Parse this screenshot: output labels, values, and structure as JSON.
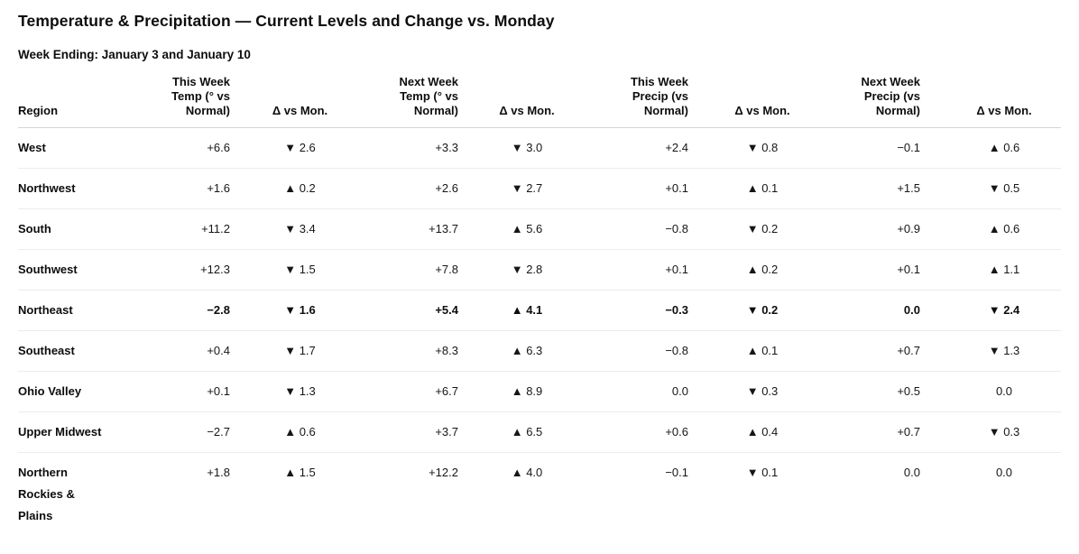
{
  "page": {
    "title": "Temperature & Precipitation — Current Levels and Change vs. Monday",
    "subtitle": "Week Ending: January 3 and January 10"
  },
  "legend": {
    "up_arrow": "▲",
    "down_arrow": "▼",
    "text_color": "#111111",
    "header_rule_color": "#d4d4d4",
    "row_rule_color": "#ececec"
  },
  "table": {
    "columns": [
      {
        "label": "Region",
        "align": "left"
      },
      {
        "label": "This Week\nTemp (° vs\nNormal)",
        "align": "right"
      },
      {
        "label": "Δ vs Mon.",
        "align": "center"
      },
      {
        "label": "Next Week\nTemp (° vs\nNormal)",
        "align": "right"
      },
      {
        "label": "Δ vs Mon.",
        "align": "center"
      },
      {
        "label": "This Week\nPrecip (vs\nNormal)",
        "align": "right"
      },
      {
        "label": "Δ vs Mon.",
        "align": "center"
      },
      {
        "label": "Next Week\nPrecip (vs\nNormal)",
        "align": "right"
      },
      {
        "label": "Δ vs Mon.",
        "align": "center"
      }
    ],
    "rows": [
      {
        "region": "West",
        "emphasis": false,
        "values": [
          "+6.6",
          "▼ 2.6",
          "+3.3",
          "▼ 3.0",
          "+2.4",
          "▼ 0.8",
          "−0.1",
          "▲ 0.6"
        ]
      },
      {
        "region": "Northwest",
        "emphasis": false,
        "values": [
          "+1.6",
          "▲ 0.2",
          "+2.6",
          "▼ 2.7",
          "+0.1",
          "▲ 0.1",
          "+1.5",
          "▼ 0.5"
        ]
      },
      {
        "region": "South",
        "emphasis": false,
        "values": [
          "+11.2",
          "▼ 3.4",
          "+13.7",
          "▲ 5.6",
          "−0.8",
          "▼ 0.2",
          "+0.9",
          "▲ 0.6"
        ]
      },
      {
        "region": "Southwest",
        "emphasis": false,
        "values": [
          "+12.3",
          "▼ 1.5",
          "+7.8",
          "▼ 2.8",
          "+0.1",
          "▲ 0.2",
          "+0.1",
          "▲ 1.1"
        ]
      },
      {
        "region": "Northeast",
        "emphasis": true,
        "values": [
          "−2.8",
          "▼ 1.6",
          "+5.4",
          "▲ 4.1",
          "−0.3",
          "▼ 0.2",
          "0.0",
          "▼ 2.4"
        ]
      },
      {
        "region": "Southeast",
        "emphasis": false,
        "values": [
          "+0.4",
          "▼ 1.7",
          "+8.3",
          "▲ 6.3",
          "−0.8",
          "▲ 0.1",
          "+0.7",
          "▼ 1.3"
        ]
      },
      {
        "region": "Ohio Valley",
        "emphasis": false,
        "values": [
          "+0.1",
          "▼ 1.3",
          "+6.7",
          "▲ 8.9",
          "0.0",
          "▼ 0.3",
          "+0.5",
          "0.0"
        ]
      },
      {
        "region": "Upper Midwest",
        "emphasis": false,
        "values": [
          "−2.7",
          "▲ 0.6",
          "+3.7",
          "▲ 6.5",
          "+0.6",
          "▲ 0.4",
          "+0.7",
          "▼ 0.3"
        ]
      },
      {
        "region": "Northern Rockies & Plains",
        "emphasis": false,
        "values": [
          "+1.8",
          "▲ 1.5",
          "+12.2",
          "▲ 4.0",
          "−0.1",
          "▼ 0.1",
          "0.0",
          "0.0"
        ]
      }
    ]
  },
  "chart_data": {
    "type": "table",
    "title": "Temperature & Precipitation — Current Levels and Change vs. Monday",
    "subtitle": "Week Ending: January 3 and January 10",
    "columns": [
      "Region",
      "This Week Temp (° vs Normal)",
      "Δ vs Mon.",
      "Next Week Temp (° vs Normal)",
      "Δ vs Mon.",
      "This Week Precip (vs Normal)",
      "Δ vs Mon.",
      "Next Week Precip (vs Normal)",
      "Δ vs Mon."
    ],
    "delta_semantics": "▼ = decrease vs Monday, ▲ = increase vs Monday; delta magnitudes listed as signed numbers",
    "rows": [
      [
        "West",
        6.6,
        -2.6,
        3.3,
        -3.0,
        2.4,
        -0.8,
        -0.1,
        0.6
      ],
      [
        "Northwest",
        1.6,
        0.2,
        2.6,
        -2.7,
        0.1,
        0.1,
        1.5,
        -0.5
      ],
      [
        "South",
        11.2,
        -3.4,
        13.7,
        5.6,
        -0.8,
        -0.2,
        0.9,
        0.6
      ],
      [
        "Southwest",
        12.3,
        -1.5,
        7.8,
        -2.8,
        0.1,
        0.2,
        0.1,
        1.1
      ],
      [
        "Northeast",
        -2.8,
        -1.6,
        5.4,
        4.1,
        -0.3,
        -0.2,
        0.0,
        -2.4
      ],
      [
        "Southeast",
        0.4,
        -1.7,
        8.3,
        6.3,
        -0.8,
        0.1,
        0.7,
        -1.3
      ],
      [
        "Ohio Valley",
        0.1,
        -1.3,
        6.7,
        8.9,
        0.0,
        -0.3,
        0.5,
        0.0
      ],
      [
        "Upper Midwest",
        -2.7,
        0.6,
        3.7,
        6.5,
        0.6,
        0.4,
        0.7,
        -0.3
      ],
      [
        "Northern Rockies & Plains",
        1.8,
        1.5,
        12.2,
        4.0,
        -0.1,
        -0.1,
        0.0,
        0.0
      ]
    ],
    "emphasized_row": "Northeast"
  }
}
